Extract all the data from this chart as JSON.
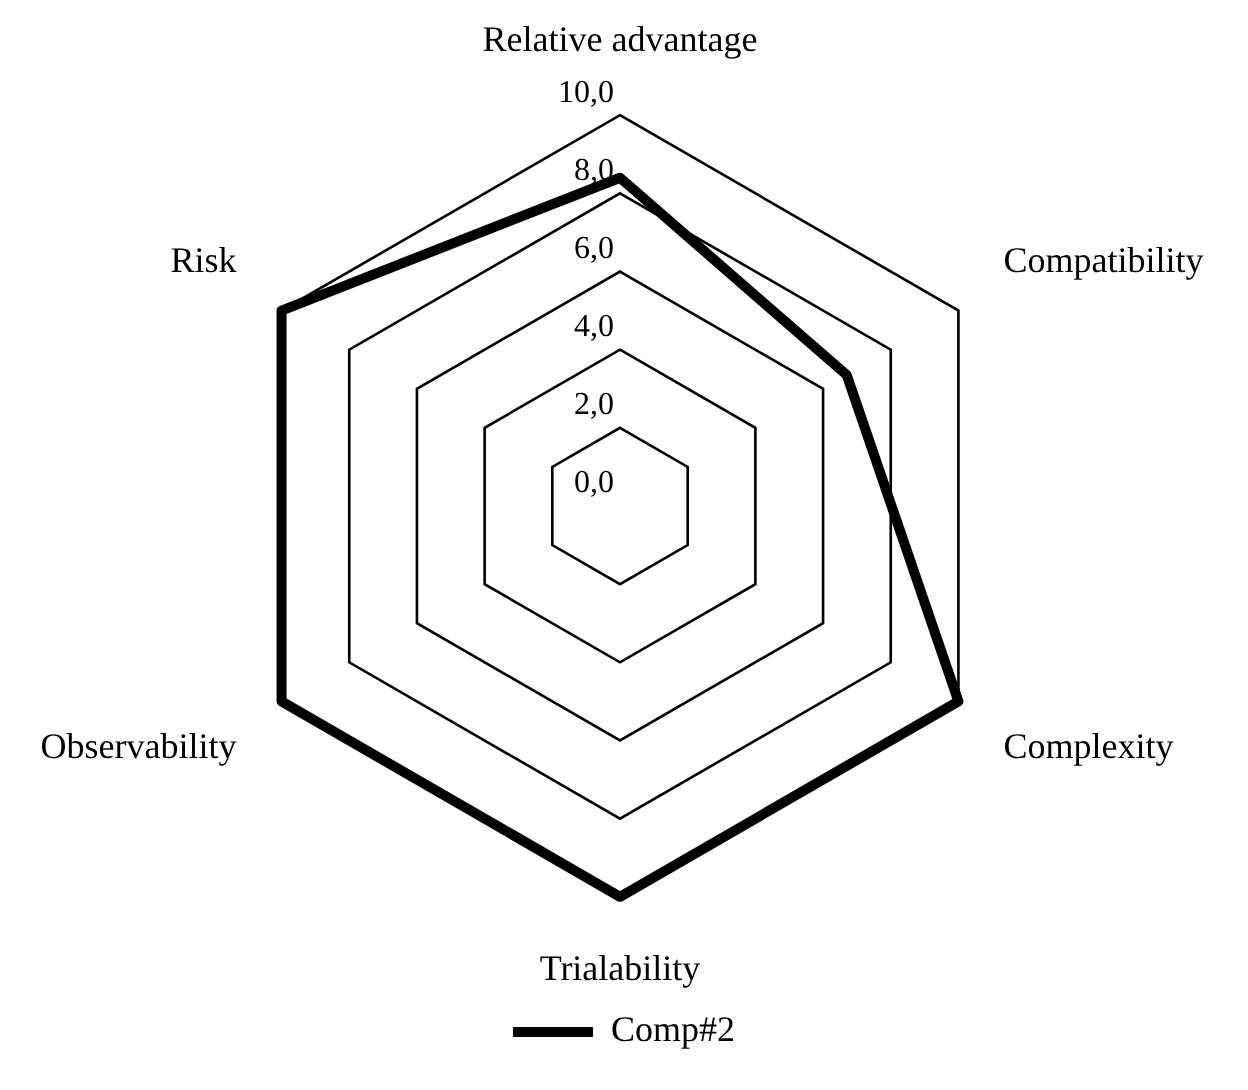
{
  "chart_data": {
    "type": "radar",
    "categories": [
      "Relative advantage",
      "Compatibility",
      "Complexity",
      "Trialability",
      "Observability",
      "Risk"
    ],
    "series": [
      {
        "name": "Comp#2",
        "color": "#000000",
        "values": [
          8.4,
          6.7,
          10,
          10,
          10,
          10
        ]
      }
    ],
    "ylim": [
      0,
      10
    ],
    "yticks": [
      {
        "value": 0,
        "label": "0,0"
      },
      {
        "value": 2,
        "label": "2,0"
      },
      {
        "value": 4,
        "label": "4,0"
      },
      {
        "value": 6,
        "label": "6,0"
      },
      {
        "value": 8,
        "label": "8,0"
      },
      {
        "value": 10,
        "label": "10,0"
      }
    ],
    "grid": true,
    "legend": "bottom",
    "marker": "none",
    "line_style": "solid"
  }
}
